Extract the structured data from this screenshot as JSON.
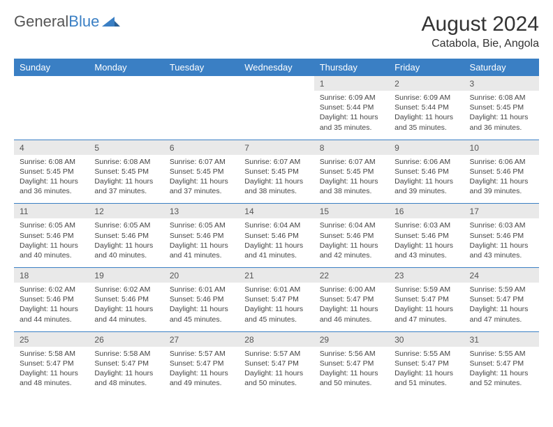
{
  "brand": {
    "part1": "General",
    "part2": "Blue"
  },
  "title": "August 2024",
  "location": "Catabola, Bie, Angola",
  "colors": {
    "header_blue": "#3a7fc4",
    "daynum_bg": "#e9e9e9",
    "text": "#333333",
    "cell_text": "#444444",
    "white": "#ffffff"
  },
  "day_names": [
    "Sunday",
    "Monday",
    "Tuesday",
    "Wednesday",
    "Thursday",
    "Friday",
    "Saturday"
  ],
  "weeks": [
    {
      "nums": [
        "",
        "",
        "",
        "",
        "1",
        "2",
        "3"
      ],
      "cells": [
        "",
        "",
        "",
        "",
        "Sunrise: 6:09 AM\nSunset: 5:44 PM\nDaylight: 11 hours and 35 minutes.",
        "Sunrise: 6:09 AM\nSunset: 5:44 PM\nDaylight: 11 hours and 35 minutes.",
        "Sunrise: 6:08 AM\nSunset: 5:45 PM\nDaylight: 11 hours and 36 minutes."
      ]
    },
    {
      "nums": [
        "4",
        "5",
        "6",
        "7",
        "8",
        "9",
        "10"
      ],
      "cells": [
        "Sunrise: 6:08 AM\nSunset: 5:45 PM\nDaylight: 11 hours and 36 minutes.",
        "Sunrise: 6:08 AM\nSunset: 5:45 PM\nDaylight: 11 hours and 37 minutes.",
        "Sunrise: 6:07 AM\nSunset: 5:45 PM\nDaylight: 11 hours and 37 minutes.",
        "Sunrise: 6:07 AM\nSunset: 5:45 PM\nDaylight: 11 hours and 38 minutes.",
        "Sunrise: 6:07 AM\nSunset: 5:45 PM\nDaylight: 11 hours and 38 minutes.",
        "Sunrise: 6:06 AM\nSunset: 5:46 PM\nDaylight: 11 hours and 39 minutes.",
        "Sunrise: 6:06 AM\nSunset: 5:46 PM\nDaylight: 11 hours and 39 minutes."
      ]
    },
    {
      "nums": [
        "11",
        "12",
        "13",
        "14",
        "15",
        "16",
        "17"
      ],
      "cells": [
        "Sunrise: 6:05 AM\nSunset: 5:46 PM\nDaylight: 11 hours and 40 minutes.",
        "Sunrise: 6:05 AM\nSunset: 5:46 PM\nDaylight: 11 hours and 40 minutes.",
        "Sunrise: 6:05 AM\nSunset: 5:46 PM\nDaylight: 11 hours and 41 minutes.",
        "Sunrise: 6:04 AM\nSunset: 5:46 PM\nDaylight: 11 hours and 41 minutes.",
        "Sunrise: 6:04 AM\nSunset: 5:46 PM\nDaylight: 11 hours and 42 minutes.",
        "Sunrise: 6:03 AM\nSunset: 5:46 PM\nDaylight: 11 hours and 43 minutes.",
        "Sunrise: 6:03 AM\nSunset: 5:46 PM\nDaylight: 11 hours and 43 minutes."
      ]
    },
    {
      "nums": [
        "18",
        "19",
        "20",
        "21",
        "22",
        "23",
        "24"
      ],
      "cells": [
        "Sunrise: 6:02 AM\nSunset: 5:46 PM\nDaylight: 11 hours and 44 minutes.",
        "Sunrise: 6:02 AM\nSunset: 5:46 PM\nDaylight: 11 hours and 44 minutes.",
        "Sunrise: 6:01 AM\nSunset: 5:46 PM\nDaylight: 11 hours and 45 minutes.",
        "Sunrise: 6:01 AM\nSunset: 5:47 PM\nDaylight: 11 hours and 45 minutes.",
        "Sunrise: 6:00 AM\nSunset: 5:47 PM\nDaylight: 11 hours and 46 minutes.",
        "Sunrise: 5:59 AM\nSunset: 5:47 PM\nDaylight: 11 hours and 47 minutes.",
        "Sunrise: 5:59 AM\nSunset: 5:47 PM\nDaylight: 11 hours and 47 minutes."
      ]
    },
    {
      "nums": [
        "25",
        "26",
        "27",
        "28",
        "29",
        "30",
        "31"
      ],
      "cells": [
        "Sunrise: 5:58 AM\nSunset: 5:47 PM\nDaylight: 11 hours and 48 minutes.",
        "Sunrise: 5:58 AM\nSunset: 5:47 PM\nDaylight: 11 hours and 48 minutes.",
        "Sunrise: 5:57 AM\nSunset: 5:47 PM\nDaylight: 11 hours and 49 minutes.",
        "Sunrise: 5:57 AM\nSunset: 5:47 PM\nDaylight: 11 hours and 50 minutes.",
        "Sunrise: 5:56 AM\nSunset: 5:47 PM\nDaylight: 11 hours and 50 minutes.",
        "Sunrise: 5:55 AM\nSunset: 5:47 PM\nDaylight: 11 hours and 51 minutes.",
        "Sunrise: 5:55 AM\nSunset: 5:47 PM\nDaylight: 11 hours and 52 minutes."
      ]
    }
  ]
}
